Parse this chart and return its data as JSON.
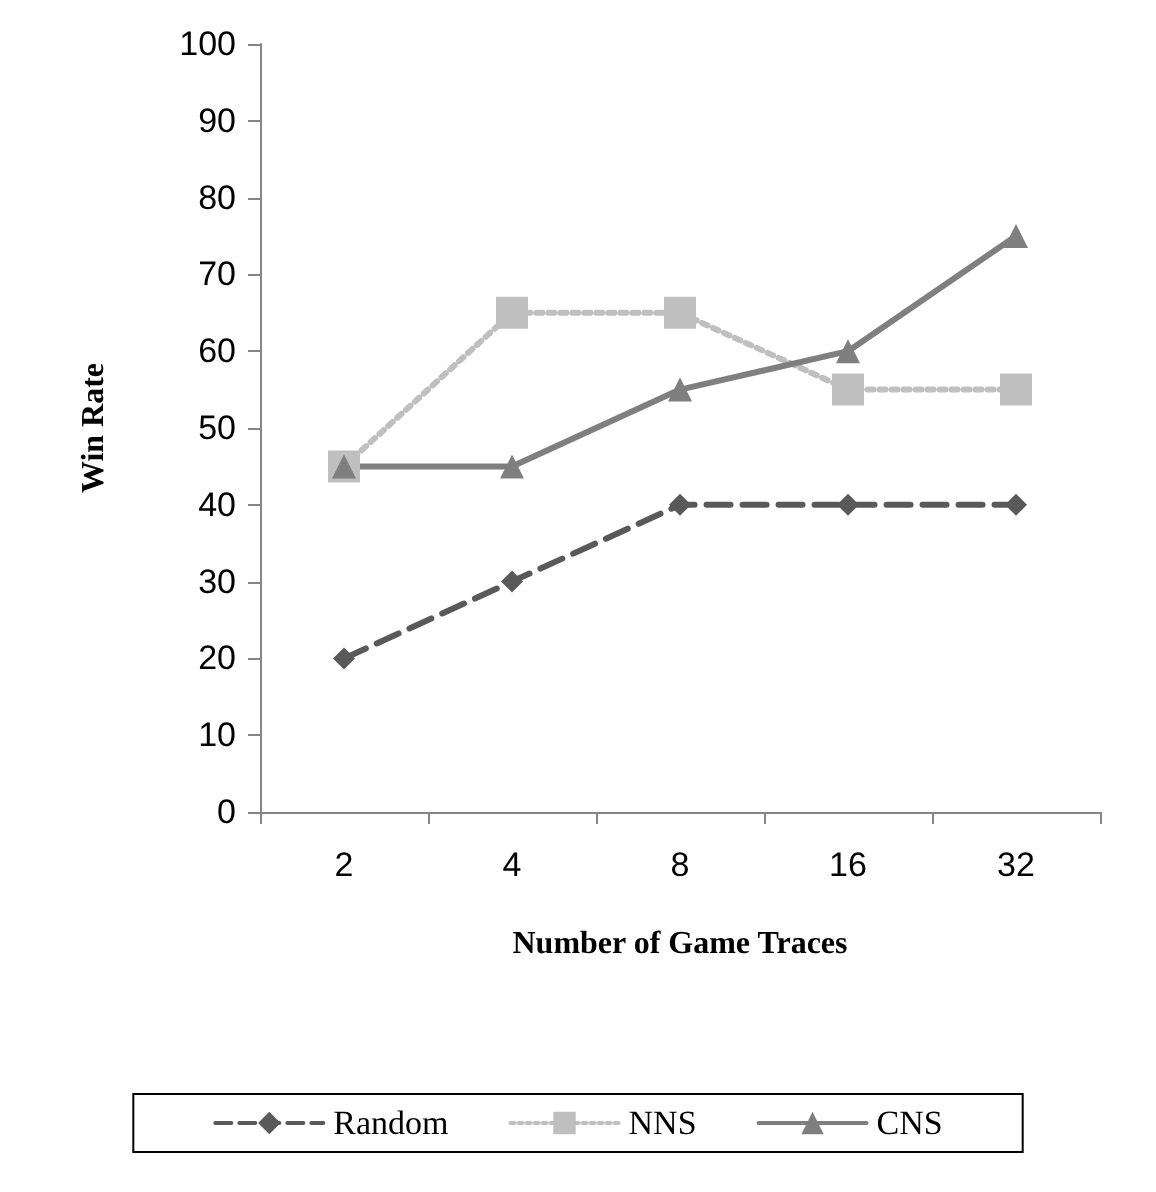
{
  "chart_data": {
    "type": "line",
    "xlabel": "Number of Game Traces",
    "ylabel": "Win Rate",
    "categories": [
      "2",
      "4",
      "8",
      "16",
      "32"
    ],
    "ylim": [
      0,
      100
    ],
    "yticks": [
      0,
      10,
      20,
      30,
      40,
      50,
      60,
      70,
      80,
      90,
      100
    ],
    "grid": false,
    "legend": "bottom",
    "series": [
      {
        "name": "Random",
        "color": "#595959",
        "values": [
          20,
          30,
          40,
          40,
          40
        ],
        "marker": "diamond",
        "line_style": "dashed"
      },
      {
        "name": "NNS",
        "color": "#bfbfbf",
        "values": [
          45,
          65,
          65,
          55,
          55
        ],
        "marker": "square",
        "line_style": "dotted"
      },
      {
        "name": "CNS",
        "color": "#7f7f7f",
        "values": [
          45,
          45,
          55,
          60,
          75
        ],
        "marker": "triangle",
        "line_style": "solid"
      }
    ]
  }
}
